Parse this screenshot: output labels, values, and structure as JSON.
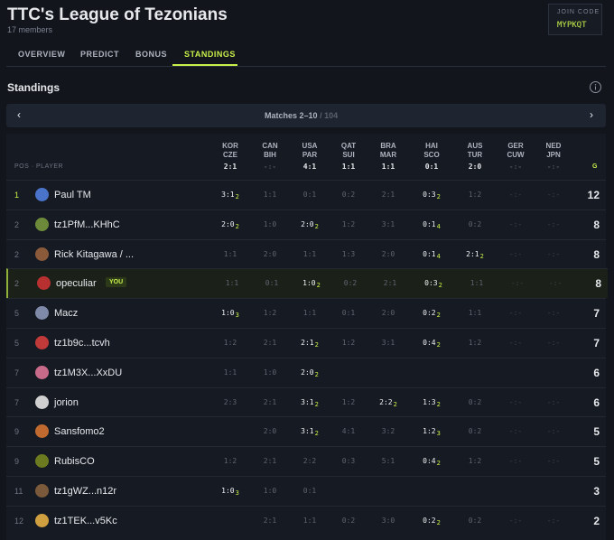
{
  "header": {
    "title": "TTC's League of Tezonians",
    "subtitle": "17 members",
    "join_code_label": "JOIN CODE",
    "join_code": "MYPKQT"
  },
  "tabs": [
    "OVERVIEW",
    "PREDICT",
    "BONUS",
    "STANDINGS"
  ],
  "active_tab": 3,
  "section_title": "Standings",
  "pager": {
    "prev": "‹",
    "label": "Matches 2–10",
    "total": "/ 104",
    "next": "›"
  },
  "table": {
    "pos_header": "POS · PLAYER",
    "total_header": "G",
    "matches": [
      {
        "home": "KOR",
        "away": "CZE",
        "score": "2:1"
      },
      {
        "home": "CAN",
        "away": "BIH",
        "score": "-:-"
      },
      {
        "home": "USA",
        "away": "PAR",
        "score": "4:1"
      },
      {
        "home": "QAT",
        "away": "SUI",
        "score": "1:1"
      },
      {
        "home": "BRA",
        "away": "MAR",
        "score": "1:1"
      },
      {
        "home": "HAI",
        "away": "SCO",
        "score": "0:1"
      },
      {
        "home": "AUS",
        "away": "TUR",
        "score": "2:0"
      },
      {
        "home": "GER",
        "away": "CUW",
        "score": "-:-"
      },
      {
        "home": "NED",
        "away": "JPN",
        "score": "-:-"
      }
    ],
    "rows": [
      {
        "pos": 1,
        "name": "Paul TM",
        "total": 12,
        "picks": [
          {
            "pick": "3:1",
            "pts": 2
          },
          {
            "pick": "1:1"
          },
          {
            "pick": "0:1"
          },
          {
            "pick": "0:2"
          },
          {
            "pick": "2:1"
          },
          {
            "pick": "0:3",
            "pts": 2
          },
          {
            "pick": "1:2"
          },
          {
            "pick": "-:-"
          },
          {
            "pick": "-:-"
          }
        ]
      },
      {
        "pos": 2,
        "name": "tz1PfM...KHhC",
        "total": 8,
        "picks": [
          {
            "pick": "2:0",
            "pts": 2
          },
          {
            "pick": "1:0"
          },
          {
            "pick": "2:0",
            "pts": 2
          },
          {
            "pick": "1:2"
          },
          {
            "pick": "3:1"
          },
          {
            "pick": "0:1",
            "pts": 4
          },
          {
            "pick": "0:2"
          },
          {
            "pick": "-:-"
          },
          {
            "pick": "-:-"
          }
        ]
      },
      {
        "pos": 2,
        "name": "Rick Kitagawa / ...",
        "total": 8,
        "picks": [
          {
            "pick": "1:1"
          },
          {
            "pick": "2:0"
          },
          {
            "pick": "1:1"
          },
          {
            "pick": "1:3"
          },
          {
            "pick": "2:0"
          },
          {
            "pick": "0:1",
            "pts": 4
          },
          {
            "pick": "2:1",
            "pts": 2
          },
          {
            "pick": "-:-"
          },
          {
            "pick": "-:-"
          }
        ]
      },
      {
        "pos": 2,
        "name": "opeculiar",
        "badge": "YOU",
        "total": 8,
        "picks": [
          {
            "pick": "1:1"
          },
          {
            "pick": "0:1"
          },
          {
            "pick": "1:0",
            "pts": 2
          },
          {
            "pick": "0:2"
          },
          {
            "pick": "2:1"
          },
          {
            "pick": "0:3",
            "pts": 2
          },
          {
            "pick": "1:1"
          },
          {
            "pick": "-:-"
          },
          {
            "pick": "-:-"
          }
        ]
      },
      {
        "pos": 5,
        "name": "Macz",
        "total": 7,
        "picks": [
          {
            "pick": "1:0",
            "pts": 3
          },
          {
            "pick": "1:2"
          },
          {
            "pick": "1:1"
          },
          {
            "pick": "0:1"
          },
          {
            "pick": "2:0"
          },
          {
            "pick": "0:2",
            "pts": 2
          },
          {
            "pick": "1:1"
          },
          {
            "pick": "-:-"
          },
          {
            "pick": "-:-"
          }
        ]
      },
      {
        "pos": 5,
        "name": "tz1b9c...tcvh",
        "total": 7,
        "picks": [
          {
            "pick": "1:2"
          },
          {
            "pick": "2:1"
          },
          {
            "pick": "2:1",
            "pts": 2
          },
          {
            "pick": "1:2"
          },
          {
            "pick": "3:1"
          },
          {
            "pick": "0:4",
            "pts": 2
          },
          {
            "pick": "1:2"
          },
          {
            "pick": "-:-"
          },
          {
            "pick": "-:-"
          }
        ]
      },
      {
        "pos": 7,
        "name": "tz1M3X...XxDU",
        "total": 6,
        "picks": [
          {
            "pick": "1:1"
          },
          {
            "pick": "1:0"
          },
          {
            "pick": "2:0",
            "pts": 2
          },
          null,
          null,
          null,
          null,
          null,
          null
        ]
      },
      {
        "pos": 7,
        "name": "jorion",
        "total": 6,
        "picks": [
          {
            "pick": "2:3"
          },
          {
            "pick": "2:1"
          },
          {
            "pick": "3:1",
            "pts": 2
          },
          {
            "pick": "1:2"
          },
          {
            "pick": "2:2",
            "pts": 2
          },
          {
            "pick": "1:3",
            "pts": 2
          },
          {
            "pick": "0:2"
          },
          {
            "pick": "-:-"
          },
          {
            "pick": "-:-"
          }
        ]
      },
      {
        "pos": 9,
        "name": "Sansfomo2",
        "total": 5,
        "picks": [
          null,
          {
            "pick": "2:0"
          },
          {
            "pick": "3:1",
            "pts": 2
          },
          {
            "pick": "4:1"
          },
          {
            "pick": "3:2"
          },
          {
            "pick": "1:2",
            "pts": 3
          },
          {
            "pick": "0:2"
          },
          {
            "pick": "-:-"
          },
          {
            "pick": "-:-"
          }
        ]
      },
      {
        "pos": 9,
        "name": "RubisCO",
        "total": 5,
        "picks": [
          {
            "pick": "1:2"
          },
          {
            "pick": "2:1"
          },
          {
            "pick": "2:2"
          },
          {
            "pick": "0:3"
          },
          {
            "pick": "5:1"
          },
          {
            "pick": "0:4",
            "pts": 2
          },
          {
            "pick": "1:2"
          },
          {
            "pick": "-:-"
          },
          {
            "pick": "-:-"
          }
        ]
      },
      {
        "pos": 11,
        "name": "tz1gWZ...n12r",
        "total": 3,
        "picks": [
          {
            "pick": "1:0",
            "pts": 3
          },
          {
            "pick": "1:0"
          },
          {
            "pick": "0:1"
          },
          null,
          null,
          null,
          null,
          null,
          null
        ]
      },
      {
        "pos": 12,
        "name": "tz1TEK...v5Kc",
        "total": 2,
        "picks": [
          null,
          {
            "pick": "2:1"
          },
          {
            "pick": "1:1"
          },
          {
            "pick": "0:2"
          },
          {
            "pick": "3:0"
          },
          {
            "pick": "0:2",
            "pts": 2
          },
          {
            "pick": "0:2"
          },
          {
            "pick": "-:-"
          },
          {
            "pick": "-:-"
          }
        ]
      }
    ]
  }
}
